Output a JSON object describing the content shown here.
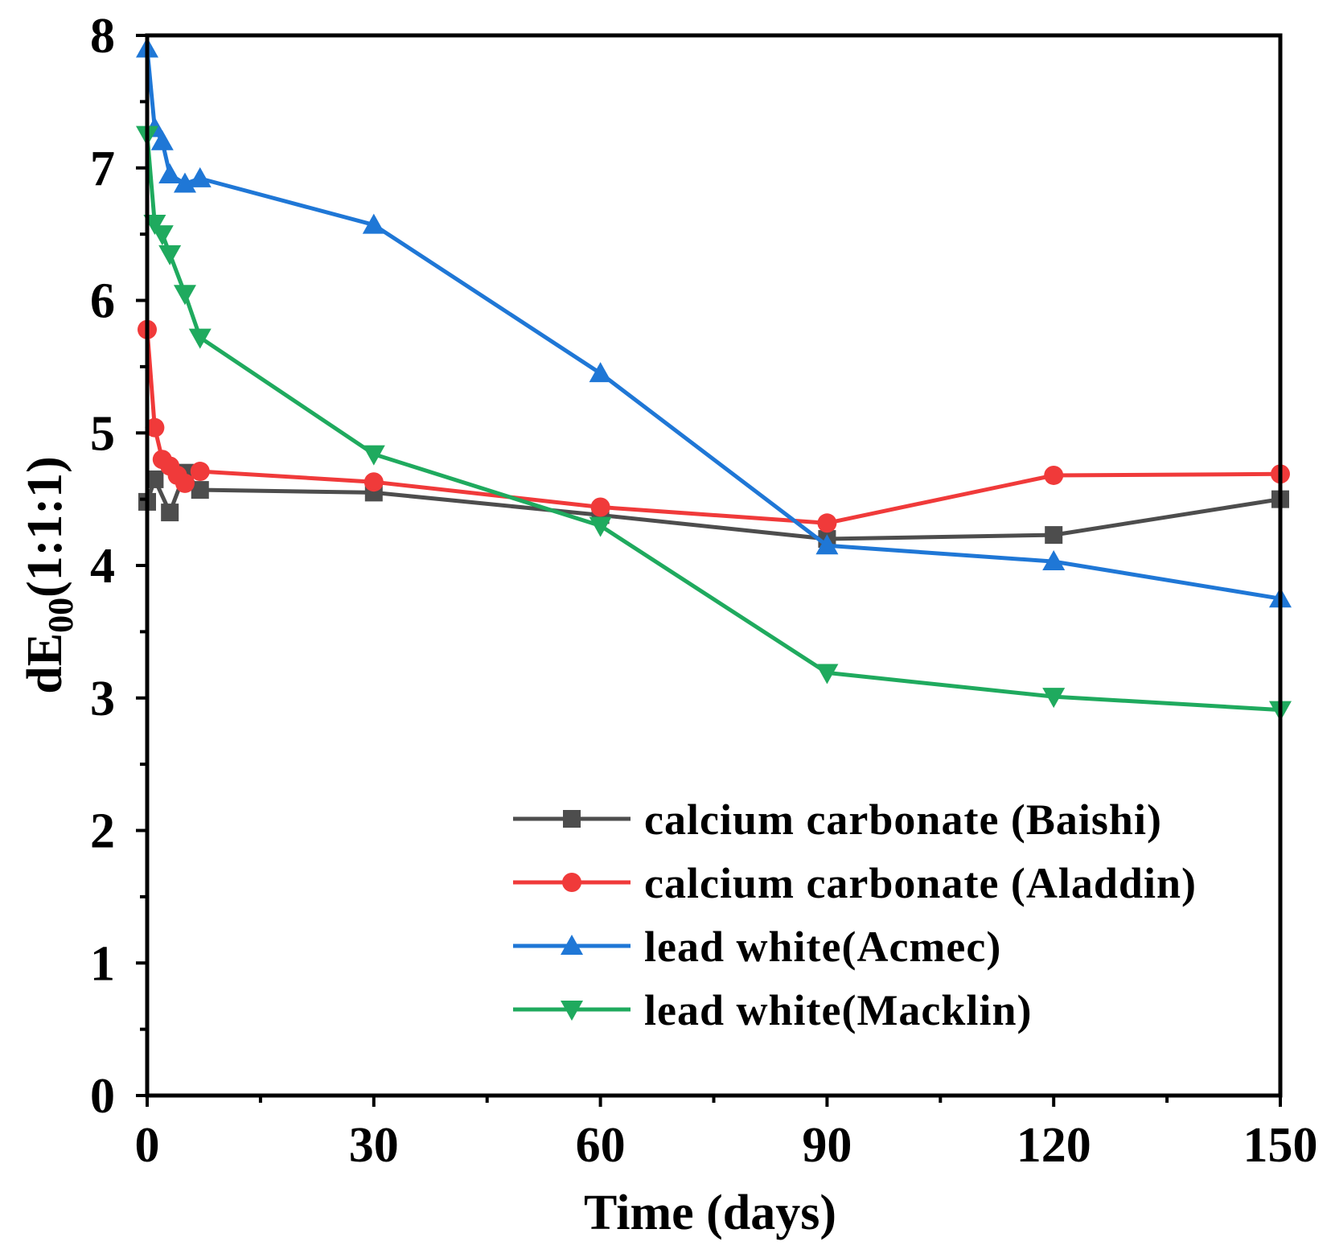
{
  "chart_data": {
    "type": "line",
    "title": "",
    "xlabel": "Time (days)",
    "ylabel": {
      "base": "dE",
      "sub": "00",
      "suffix": "(1:1:1)"
    },
    "xlim": [
      0,
      150
    ],
    "ylim": [
      0,
      8
    ],
    "xticks": [
      0,
      30,
      60,
      90,
      120,
      150
    ],
    "yticks": [
      0,
      1,
      2,
      3,
      4,
      5,
      6,
      7,
      8
    ],
    "grid": false,
    "legend_position": "bottom-right",
    "series": [
      {
        "name": "calcium carbonate (Baishi)",
        "color": "#4d4d4d",
        "marker": "square",
        "x": [
          0,
          1,
          3,
          5,
          7,
          30,
          60,
          90,
          120,
          150
        ],
        "y": [
          4.48,
          4.65,
          4.4,
          4.7,
          4.57,
          4.55,
          4.38,
          4.2,
          4.23,
          4.5
        ]
      },
      {
        "name": "calcium carbonate (Aladdin)",
        "color": "#f03a3a",
        "marker": "circle",
        "x": [
          0,
          1,
          2,
          3,
          4,
          5,
          7,
          30,
          60,
          90,
          120,
          150
        ],
        "y": [
          5.78,
          5.04,
          4.8,
          4.75,
          4.68,
          4.62,
          4.71,
          4.63,
          4.44,
          4.32,
          4.68,
          4.69
        ]
      },
      {
        "name": "lead white(Acmec)",
        "color": "#1f77d6",
        "marker": "triangle-up",
        "x": [
          0,
          1,
          2,
          3,
          5,
          7,
          30,
          60,
          90,
          120,
          150
        ],
        "y": [
          7.9,
          7.3,
          7.2,
          6.95,
          6.88,
          6.92,
          6.57,
          5.45,
          4.15,
          4.03,
          3.75
        ]
      },
      {
        "name": "lead white(Macklin)",
        "color": "#1faa5e",
        "marker": "triangle-down",
        "x": [
          0,
          1,
          2,
          3,
          5,
          7,
          30,
          60,
          90,
          120,
          150
        ],
        "y": [
          7.25,
          6.58,
          6.5,
          6.35,
          6.05,
          5.72,
          4.84,
          4.3,
          3.19,
          3.01,
          2.91
        ]
      }
    ]
  }
}
